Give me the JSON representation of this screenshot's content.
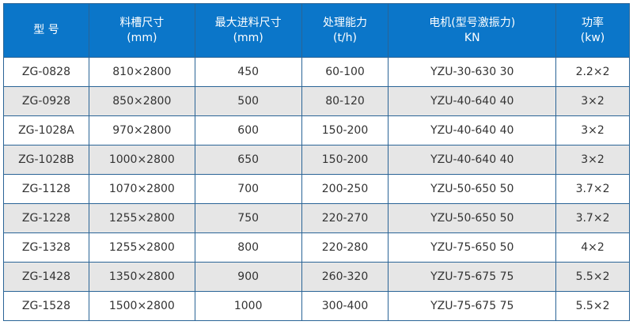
{
  "colors": {
    "header_bg": "#0b76c9",
    "alt_row_bg": "#e6e6e6",
    "border": "#2a6496"
  },
  "headers": [
    {
      "line1": "型 号",
      "line2": ""
    },
    {
      "line1": "料槽尺寸",
      "line2": "(mm)"
    },
    {
      "line1": "最大进料尺寸",
      "line2": "(mm)"
    },
    {
      "line1": "处理能力",
      "line2": "(t/h)"
    },
    {
      "line1": "电机(型号激振力)",
      "line2": "KN"
    },
    {
      "line1": "功率",
      "line2": "(kw)"
    }
  ],
  "rows": [
    [
      "ZG-0828",
      "810×2800",
      "450",
      "60-100",
      "YZU-30-630 30",
      "2.2×2"
    ],
    [
      "ZG-0928",
      "850×2800",
      "500",
      "80-120",
      "YZU-40-640 40",
      "3×2"
    ],
    [
      "ZG-1028A",
      "970×2800",
      "600",
      "150-200",
      "YZU-40-640 40",
      "3×2"
    ],
    [
      "ZG-1028B",
      "1000×2800",
      "650",
      "150-200",
      "YZU-40-640 40",
      "3×2"
    ],
    [
      "ZG-1128",
      "1070×2800",
      "700",
      "200-250",
      "YZU-50-650 50",
      "3.7×2"
    ],
    [
      "ZG-1228",
      "1255×2800",
      "750",
      "220-270",
      "YZU-50-650 50",
      "3.7×2"
    ],
    [
      "ZG-1328",
      "1255×2800",
      "800",
      "220-280",
      "YZU-75-650 50",
      "4×2"
    ],
    [
      "ZG-1428",
      "1350×2800",
      "900",
      "260-320",
      "YZU-75-675 75",
      "5.5×2"
    ],
    [
      "ZG-1528",
      "1500×2800",
      "1000",
      "300-400",
      "YZU-75-675 75",
      "5.5×2"
    ]
  ]
}
